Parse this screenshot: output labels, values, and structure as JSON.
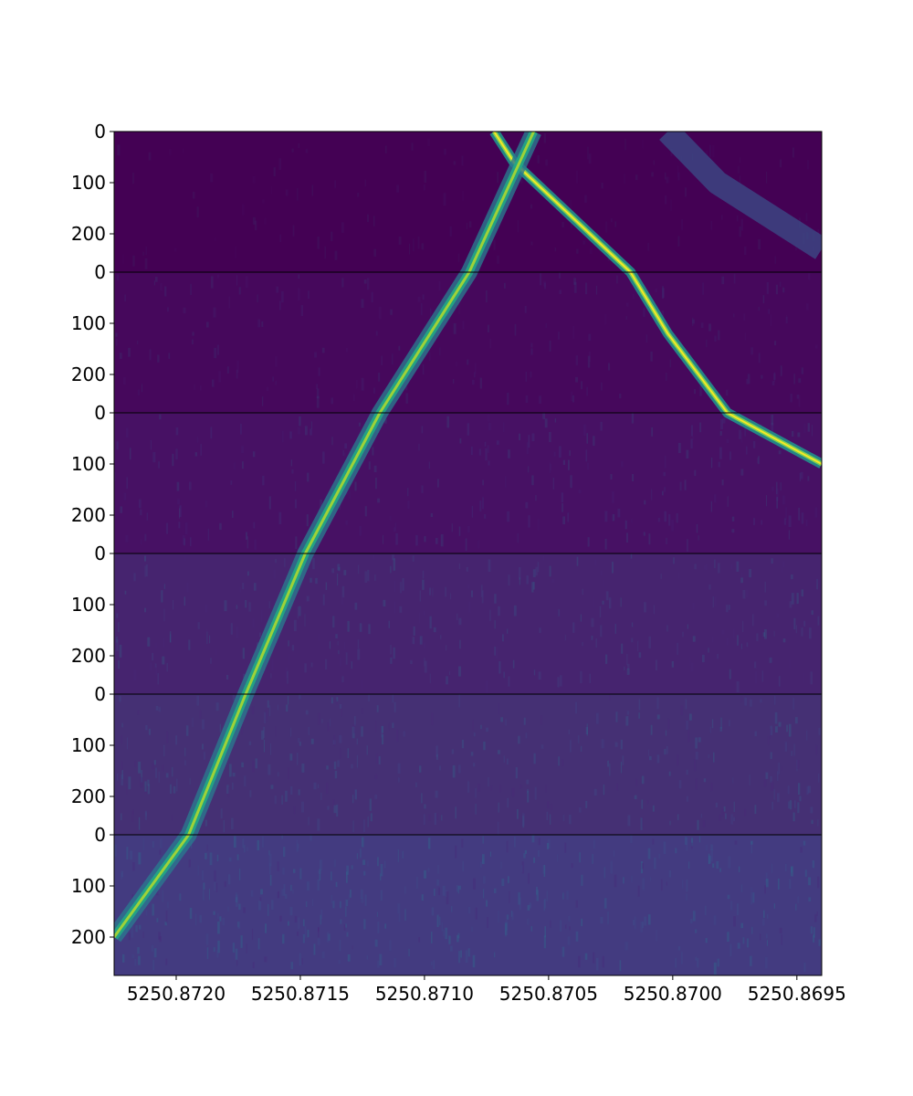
{
  "chart_data": {
    "type": "heatmap",
    "title": "",
    "xlabel": "",
    "ylabel": "",
    "colormap": "viridis",
    "x_axis": {
      "direction": "descending",
      "range": [
        5250.87225,
        5250.8694
      ],
      "tick_values": [
        5250.872,
        5250.8715,
        5250.871,
        5250.8705,
        5250.87,
        5250.8695
      ],
      "tick_labels": [
        "5250.8720",
        "5250.8715",
        "5250.8710",
        "5250.8705",
        "5250.8700",
        "5250.8695"
      ]
    },
    "panels": [
      {
        "index": 1,
        "y_range": [
          0,
          275
        ],
        "y_tick_labels": [
          "0",
          "100",
          "200"
        ]
      },
      {
        "index": 2,
        "y_range": [
          0,
          275
        ],
        "y_tick_labels": [
          "0",
          "100",
          "200"
        ]
      },
      {
        "index": 3,
        "y_range": [
          0,
          275
        ],
        "y_tick_labels": [
          "0",
          "100",
          "200"
        ]
      },
      {
        "index": 4,
        "y_range": [
          0,
          275
        ],
        "y_tick_labels": [
          "0",
          "100",
          "200"
        ]
      },
      {
        "index": 5,
        "y_range": [
          0,
          275
        ],
        "y_tick_labels": [
          "0",
          "100",
          "200"
        ]
      },
      {
        "index": 6,
        "y_range": [
          0,
          275
        ],
        "y_tick_labels": [
          "0",
          "100",
          "200"
        ]
      }
    ],
    "background_colors": [
      "#440154",
      "#46085c",
      "#471164",
      "#46246f",
      "#453074",
      "#433b80"
    ],
    "series": [
      {
        "track": "sharp-descending-line",
        "points": [
          {
            "panel": 1,
            "row": 0,
            "x": 5250.87072
          },
          {
            "panel": 1,
            "row": 60,
            "x": 5250.87064
          },
          {
            "panel": 2,
            "row": 0,
            "x": 5250.87017
          },
          {
            "panel": 2,
            "row": 120,
            "x": 5250.87002
          },
          {
            "panel": 3,
            "row": 0,
            "x": 5250.86978
          },
          {
            "panel": 3,
            "row": 100,
            "x": 5250.8694
          }
        ]
      },
      {
        "track": "broad-ascending-line",
        "points": [
          {
            "panel": 1,
            "row": 0,
            "x": 5250.87056
          },
          {
            "panel": 2,
            "row": 0,
            "x": 5250.87082
          },
          {
            "panel": 3,
            "row": 0,
            "x": 5250.87118
          },
          {
            "panel": 4,
            "row": 0,
            "x": 5250.87148
          },
          {
            "panel": 5,
            "row": 0,
            "x": 5250.87172
          },
          {
            "panel": 6,
            "row": 0,
            "x": 5250.87195
          },
          {
            "panel": 6,
            "row": 200,
            "x": 5250.87225
          }
        ]
      },
      {
        "track": "faint-diffuse-line",
        "points": [
          {
            "panel": 1,
            "row": 0,
            "x": 5250.87002
          },
          {
            "panel": 1,
            "row": 100,
            "x": 5250.86982
          },
          {
            "panel": 1,
            "row": 230,
            "x": 5250.8694
          }
        ]
      }
    ]
  }
}
